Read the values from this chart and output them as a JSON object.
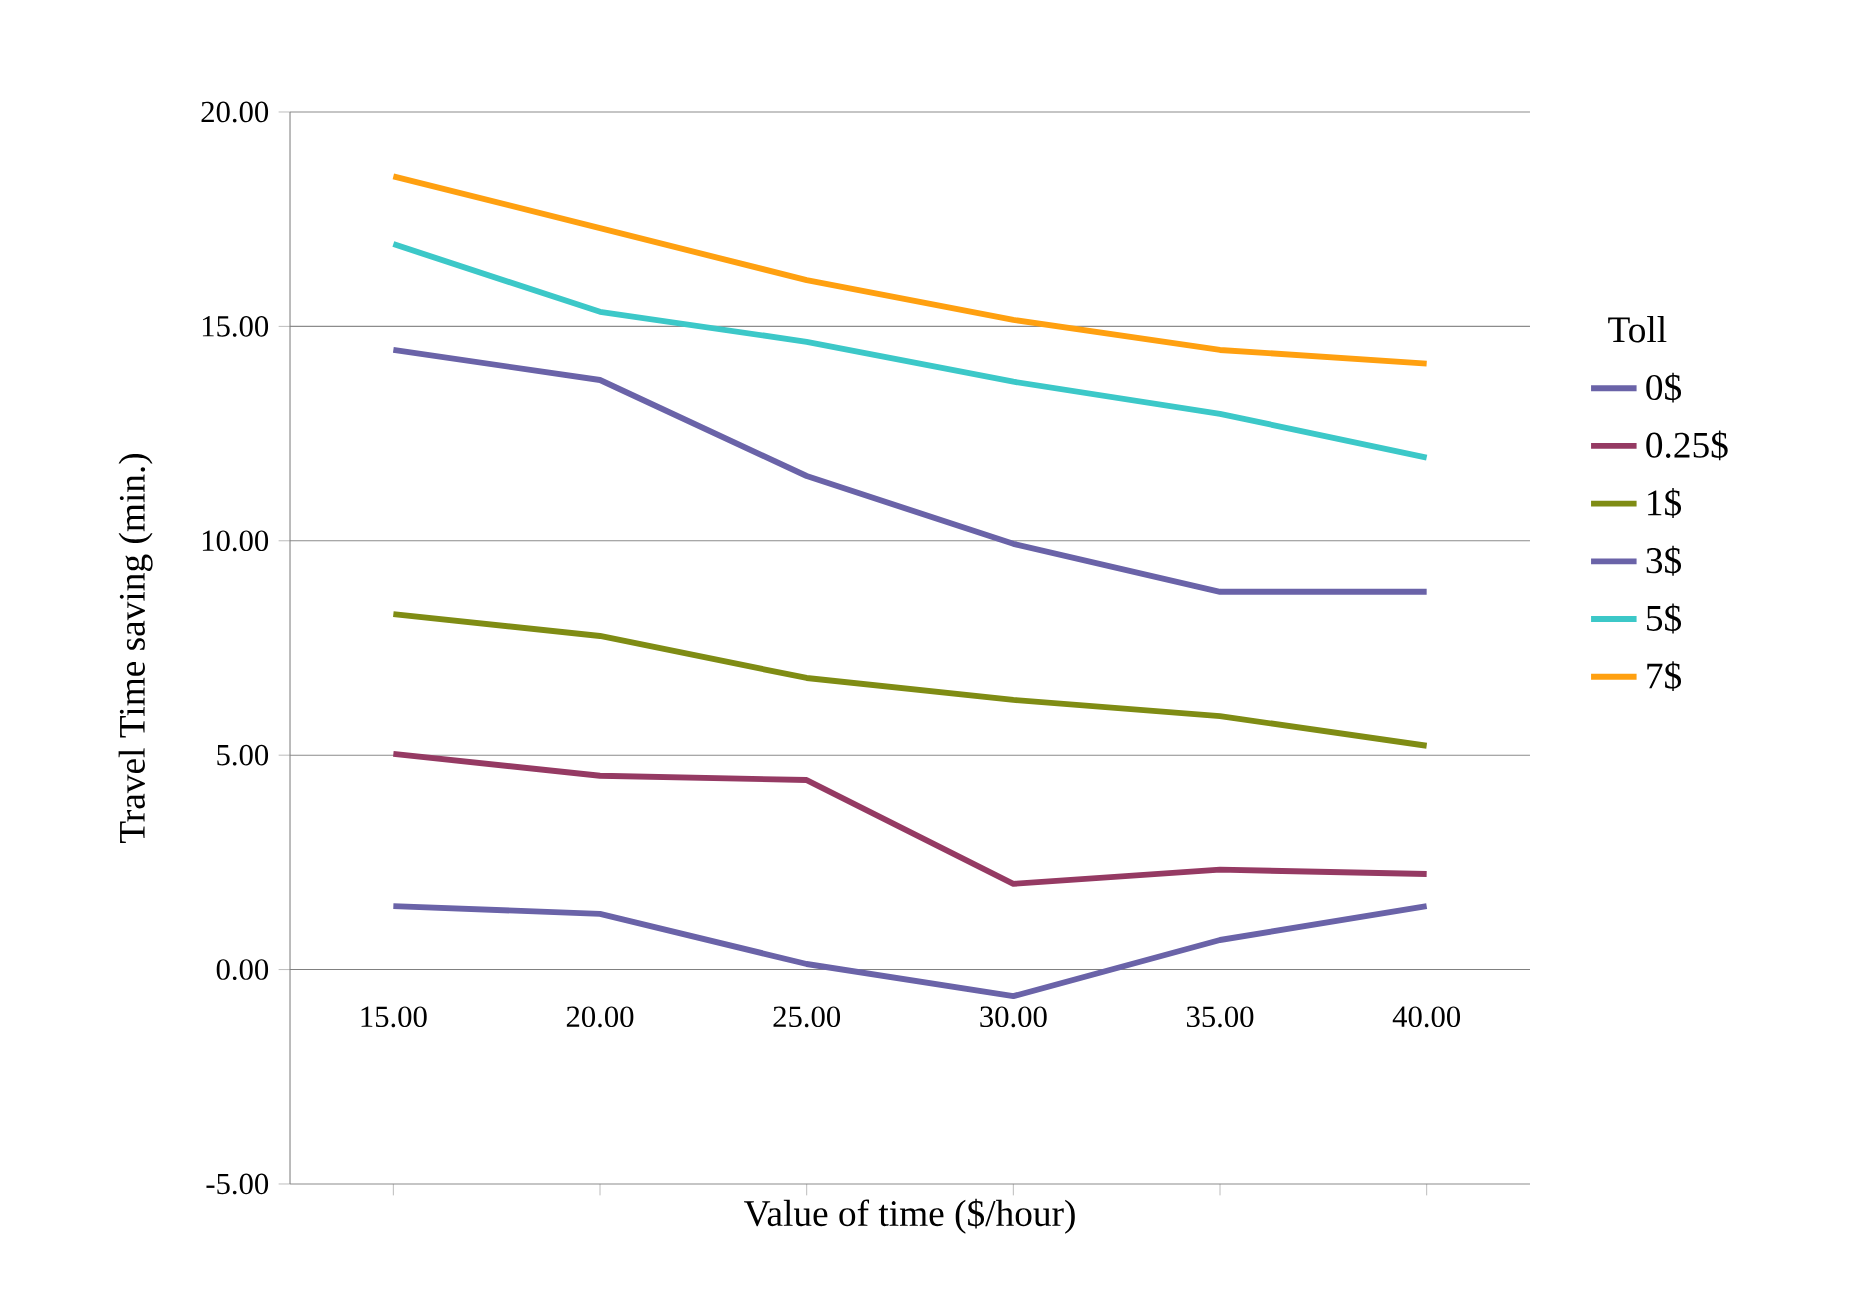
{
  "chart_data": {
    "type": "line",
    "xlabel": "Value of time ($/hour)",
    "ylabel": "Travel Time saving (min.)",
    "legend_title": "Toll",
    "categories": [
      "15.00",
      "20.00",
      "25.00",
      "30.00",
      "35.00",
      "40.00"
    ],
    "ylim": [
      -5,
      20
    ],
    "yticks": [
      {
        "value": -5,
        "label": "-5.00"
      },
      {
        "value": 0,
        "label": "0.00"
      },
      {
        "value": 5,
        "label": "5.00"
      },
      {
        "value": 10,
        "label": "10.00"
      },
      {
        "value": 15,
        "label": "15.00"
      },
      {
        "value": 20,
        "label": "20.00"
      }
    ],
    "grid": "y",
    "legend": "right",
    "marker": "none",
    "line_style": "solid",
    "series": [
      {
        "name": "0$",
        "color": "#6a63a8",
        "values": [
          1.48,
          1.3,
          0.13,
          -0.62,
          0.69,
          1.48
        ]
      },
      {
        "name": "0.25$",
        "color": "#953a63",
        "values": [
          5.03,
          4.52,
          4.42,
          2.0,
          2.33,
          2.23
        ]
      },
      {
        "name": "1$",
        "color": "#7f8c14",
        "values": [
          8.29,
          7.78,
          6.8,
          6.29,
          5.91,
          5.22
        ]
      },
      {
        "name": "3$",
        "color": "#6a63a8",
        "values": [
          14.45,
          13.75,
          11.51,
          9.93,
          8.81,
          8.81
        ]
      },
      {
        "name": "5$",
        "color": "#3cc8c8",
        "values": [
          16.92,
          15.34,
          14.64,
          13.71,
          12.96,
          11.94
        ]
      },
      {
        "name": "7$",
        "color": "#ffa010",
        "values": [
          18.5,
          17.29,
          16.08,
          15.15,
          14.45,
          14.13
        ]
      }
    ]
  }
}
